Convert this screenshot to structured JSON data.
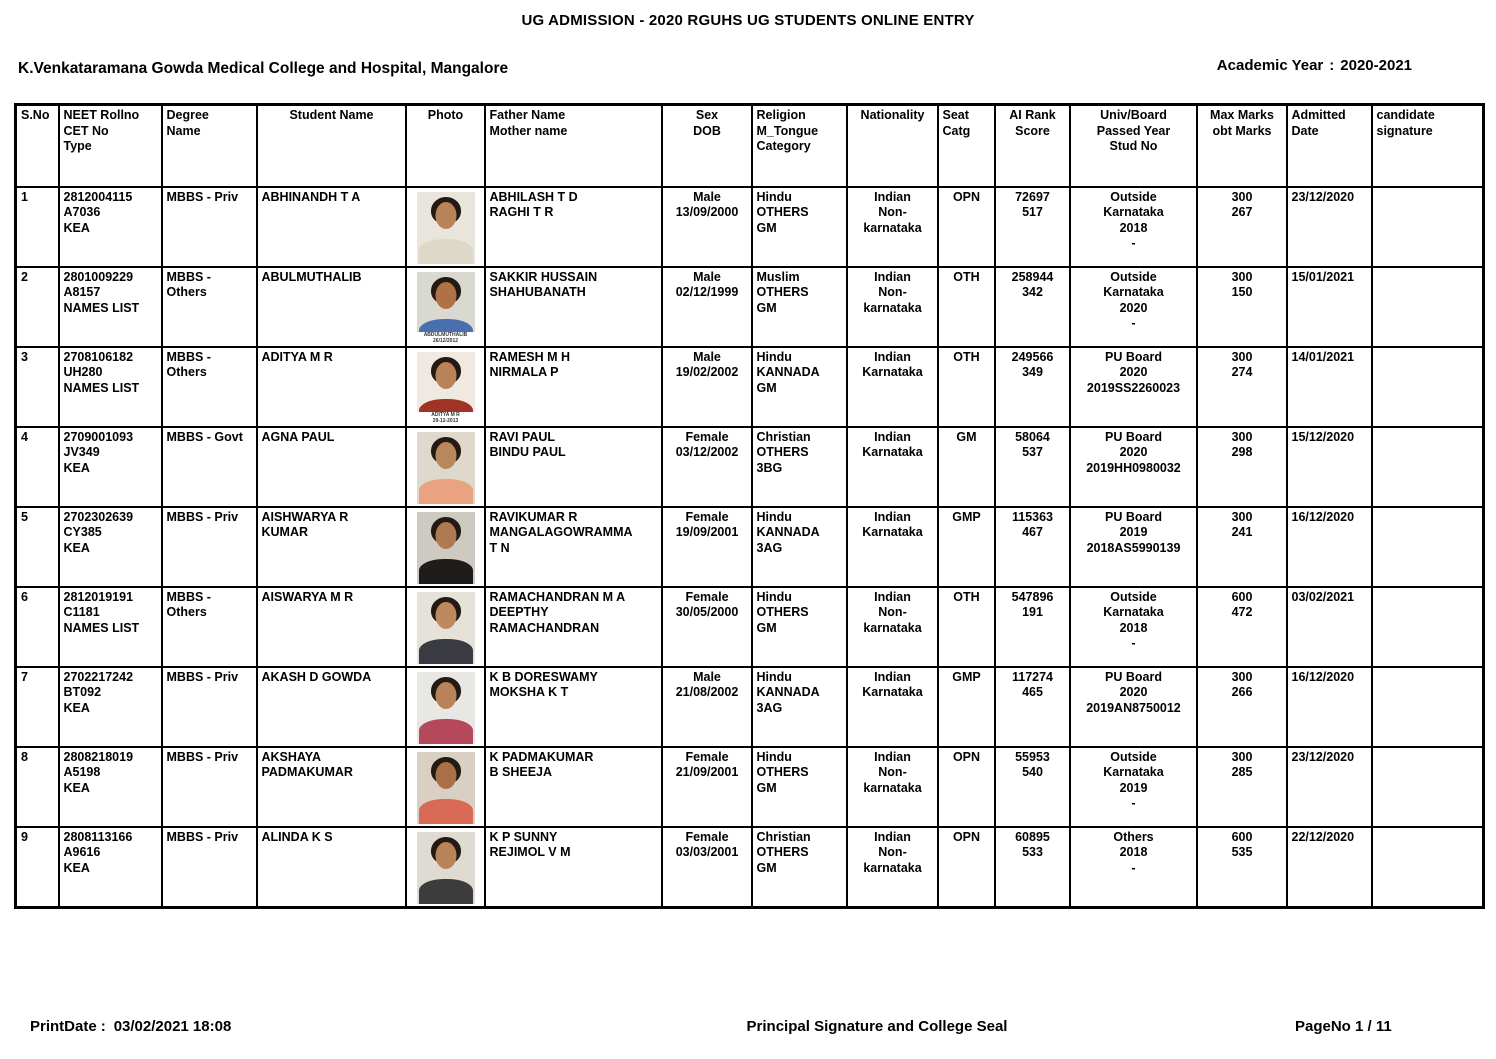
{
  "header": {
    "title": "UG ADMISSION  - 2020 RGUHS UG STUDENTS ONLINE ENTRY",
    "college": "K.Venkataramana Gowda Medical College and Hospital, Mangalore",
    "academic_year_label": "Academic Year",
    "academic_year_sep": ":",
    "academic_year_value": "2020-2021"
  },
  "table": {
    "columns": [
      {
        "key": "sno",
        "label": "S.No"
      },
      {
        "key": "neet",
        "label": "NEET Rollno\nCET No\nType"
      },
      {
        "key": "degree",
        "label": "Degree\nName"
      },
      {
        "key": "student",
        "label": "Student Name"
      },
      {
        "key": "photo",
        "label": "Photo"
      },
      {
        "key": "parents",
        "label": "Father Name\nMother name"
      },
      {
        "key": "sexdob",
        "label": "Sex\nDOB"
      },
      {
        "key": "religion",
        "label": "Religion\nM_Tongue\nCategory"
      },
      {
        "key": "nationality",
        "label": "Nationality"
      },
      {
        "key": "seat",
        "label": "Seat\nCatg"
      },
      {
        "key": "rank",
        "label": "AI Rank\nScore"
      },
      {
        "key": "univ",
        "label": "Univ/Board\nPassed Year\nStud No"
      },
      {
        "key": "marks",
        "label": "Max  Marks\nobt Marks"
      },
      {
        "key": "admitted",
        "label": "Admitted\nDate"
      },
      {
        "key": "signature",
        "label": "candidate\nsignature"
      }
    ],
    "rows": [
      {
        "cells": {
          "sno": "1",
          "neet": "2812004115\nA7036\nKEA",
          "degree": "MBBS - Priv",
          "student": "ABHINANDH T A",
          "parents": "ABHILASH T D\nRAGHI T R",
          "sexdob": "Male\n13/09/2000",
          "religion": "Hindu\nOTHERS\nGM",
          "nationality": "Indian\nNon-\nkarnataka",
          "seat": "OPN",
          "rank": "72697\n517",
          "univ": "Outside\nKarnataka\n2018\n-",
          "marks": "300\n267",
          "admitted": "23/12/2020"
        },
        "photo": {
          "bg": "#e9e5dc",
          "skin": "#b9835a",
          "shirt": "#ddd8c8",
          "caption": ""
        }
      },
      {
        "cells": {
          "sno": "2",
          "neet": "2801009229\nA8157\nNAMES LIST",
          "degree": "MBBS -\nOthers",
          "student": "ABULMUTHALIB",
          "parents": "SAKKIR HUSSAIN\nSHAHUBANATH",
          "sexdob": "Male\n02/12/1999",
          "religion": "Muslim\nOTHERS\nGM",
          "nationality": "Indian\nNon-\nkarnataka",
          "seat": "OTH",
          "rank": "258944\n342",
          "univ": "Outside\nKarnataka\n2020\n-",
          "marks": "300\n150",
          "admitted": "15/01/2021"
        },
        "photo": {
          "bg": "#d9d9d1",
          "skin": "#b07048",
          "shirt": "#4a6fae",
          "caption": "ABDULMUTHALIB\n26/12/2012"
        }
      },
      {
        "cells": {
          "sno": "3",
          "neet": "2708106182\nUH280\nNAMES LIST",
          "degree": "MBBS -\nOthers",
          "student": "ADITYA M R",
          "parents": "RAMESH M H\nNIRMALA P",
          "sexdob": "Male\n19/02/2002",
          "religion": "Hindu\nKANNADA\nGM",
          "nationality": "Indian\nKarnataka",
          "seat": "OTH",
          "rank": "249566\n349",
          "univ": "PU  Board\n2020\n2019SS2260023",
          "marks": "300\n274",
          "admitted": "14/01/2021"
        },
        "photo": {
          "bg": "#efe9e1",
          "skin": "#b9835a",
          "shirt": "#9e3326",
          "caption": "ADITYA M R\n29-12-2013"
        }
      },
      {
        "cells": {
          "sno": "4",
          "neet": "2709001093\nJV349\nKEA",
          "degree": "MBBS - Govt",
          "student": "AGNA PAUL",
          "parents": "RAVI PAUL\nBINDU PAUL",
          "sexdob": "Female\n03/12/2002",
          "religion": "Christian\nOTHERS\n3BG",
          "nationality": "Indian\nKarnataka",
          "seat": "GM",
          "rank": "58064\n537",
          "univ": "PU  Board\n2020\n2019HH0980032",
          "marks": "300\n298",
          "admitted": "15/12/2020"
        },
        "photo": {
          "bg": "#ded8cd",
          "skin": "#b9875e",
          "shirt": "#eaa380",
          "caption": ""
        }
      },
      {
        "cells": {
          "sno": "5",
          "neet": "2702302639\nCY385\nKEA",
          "degree": "MBBS - Priv",
          "student": "AISHWARYA R\nKUMAR",
          "parents": "RAVIKUMAR R\nMANGALAGOWRAMMA\nT N",
          "sexdob": "Female\n19/09/2001",
          "religion": "Hindu\nKANNADA\n3AG",
          "nationality": "Indian\nKarnataka",
          "seat": "GMP",
          "rank": "115363\n467",
          "univ": "PU  Board\n2019\n2018AS5990139",
          "marks": "300\n241",
          "admitted": "16/12/2020"
        },
        "photo": {
          "bg": "#cfcac1",
          "skin": "#ad7a52",
          "shirt": "#1f1d1b",
          "caption": ""
        }
      },
      {
        "cells": {
          "sno": "6",
          "neet": "2812019191\nC1181\nNAMES LIST",
          "degree": "MBBS -\nOthers",
          "student": "AISWARYA M R",
          "parents": "RAMACHANDRAN  M A\nDEEPTHY\nRAMACHANDRAN",
          "sexdob": "Female\n30/05/2000",
          "religion": "Hindu\nOTHERS\nGM",
          "nationality": "Indian\nNon-\nkarnataka",
          "seat": "OTH",
          "rank": "547896\n191",
          "univ": "Outside\nKarnataka\n2018\n-",
          "marks": "600\n472",
          "admitted": "03/02/2021"
        },
        "photo": {
          "bg": "#e6e1d9",
          "skin": "#bd8a60",
          "shirt": "#3a3a42",
          "caption": ""
        }
      },
      {
        "cells": {
          "sno": "7",
          "neet": "2702217242\nBT092\nKEA",
          "degree": "MBBS - Priv",
          "student": "AKASH D GOWDA",
          "parents": "K B DORESWAMY\nMOKSHA K T",
          "sexdob": "Male\n21/08/2002",
          "religion": "Hindu\nKANNADA\n3AG",
          "nationality": "Indian\nKarnataka",
          "seat": "GMP",
          "rank": "117274\n465",
          "univ": "PU  Board\n2020\n2019AN8750012",
          "marks": "300\n266",
          "admitted": "16/12/2020"
        },
        "photo": {
          "bg": "#e9e7e3",
          "skin": "#b9835a",
          "shirt": "#b5485a",
          "caption": ""
        }
      },
      {
        "cells": {
          "sno": "8",
          "neet": "2808218019\nA5198\nKEA",
          "degree": "MBBS - Priv",
          "student": "AKSHAYA\nPADMAKUMAR",
          "parents": "K PADMAKUMAR\nB SHEEJA",
          "sexdob": "Female\n21/09/2001",
          "religion": "Hindu\nOTHERS\nGM",
          "nationality": "Indian\nNon-\nkarnataka",
          "seat": "OPN",
          "rank": "55953\n540",
          "univ": "Outside\nKarnataka\n2019\n-",
          "marks": "300\n285",
          "admitted": "23/12/2020"
        },
        "photo": {
          "bg": "#d9d0c3",
          "skin": "#a96f46",
          "shirt": "#d96a55",
          "caption": ""
        }
      },
      {
        "cells": {
          "sno": "9",
          "neet": "2808113166\nA9616\nKEA",
          "degree": "MBBS - Priv",
          "student": "ALINDA K S",
          "parents": "K P SUNNY\nREJIMOL V M",
          "sexdob": "Female\n03/03/2001",
          "religion": "Christian\nOTHERS\nGM",
          "nationality": "Indian\nNon-\nkarnataka",
          "seat": "OPN",
          "rank": "60895\n533",
          "univ": "Others\n2018\n-",
          "marks": "600\n535",
          "admitted": "22/12/2020"
        },
        "photo": {
          "bg": "#dfdbd3",
          "skin": "#b9835a",
          "shirt": "#3c3c3c",
          "caption": ""
        }
      }
    ]
  },
  "footer": {
    "printdate_label": "PrintDate",
    "printdate_sep": ":",
    "printdate_value": "03/02/2021 18:08",
    "signature_text": "Principal Signature and College Seal",
    "pageno_text": "PageNo 1 / 11"
  }
}
